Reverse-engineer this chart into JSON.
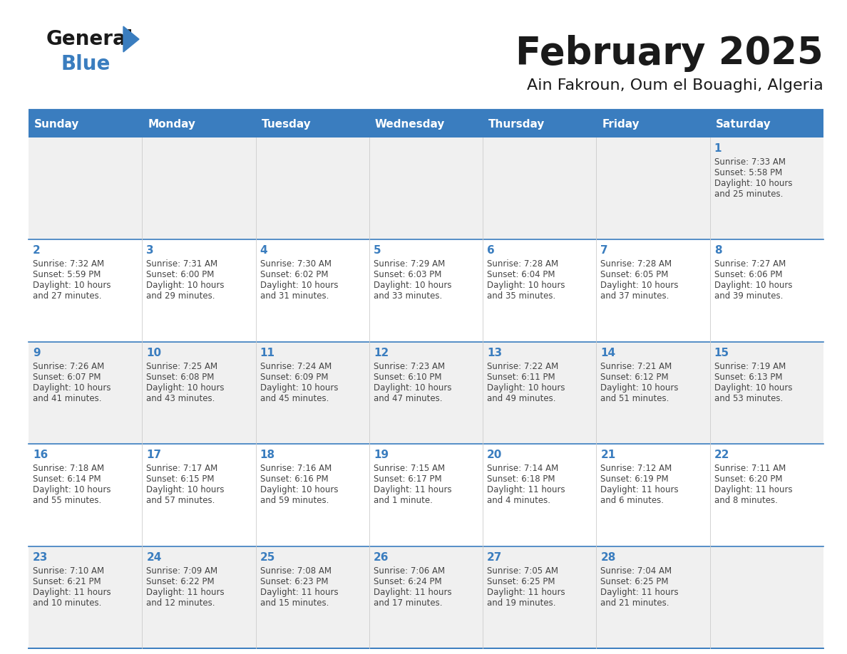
{
  "title": "February 2025",
  "subtitle": "Ain Fakroun, Oum el Bouaghi, Algeria",
  "days_of_week": [
    "Sunday",
    "Monday",
    "Tuesday",
    "Wednesday",
    "Thursday",
    "Friday",
    "Saturday"
  ],
  "header_bg": "#3a7dbf",
  "header_text": "#ffffff",
  "row_bg_odd": "#f0f0f0",
  "row_bg_even": "#ffffff",
  "border_color": "#3a7dbf",
  "day_number_color": "#3a7dbf",
  "text_color": "#444444",
  "title_color": "#1a1a1a",
  "logo_general_color": "#1a1a1a",
  "logo_blue_color": "#3a7dbf",
  "calendar_data": [
    [
      null,
      null,
      null,
      null,
      null,
      null,
      {
        "day": 1,
        "sunrise": "7:33 AM",
        "sunset": "5:58 PM",
        "daylight": "10 hours",
        "daylight2": "and 25 minutes."
      }
    ],
    [
      {
        "day": 2,
        "sunrise": "7:32 AM",
        "sunset": "5:59 PM",
        "daylight": "10 hours",
        "daylight2": "and 27 minutes."
      },
      {
        "day": 3,
        "sunrise": "7:31 AM",
        "sunset": "6:00 PM",
        "daylight": "10 hours",
        "daylight2": "and 29 minutes."
      },
      {
        "day": 4,
        "sunrise": "7:30 AM",
        "sunset": "6:02 PM",
        "daylight": "10 hours",
        "daylight2": "and 31 minutes."
      },
      {
        "day": 5,
        "sunrise": "7:29 AM",
        "sunset": "6:03 PM",
        "daylight": "10 hours",
        "daylight2": "and 33 minutes."
      },
      {
        "day": 6,
        "sunrise": "7:28 AM",
        "sunset": "6:04 PM",
        "daylight": "10 hours",
        "daylight2": "and 35 minutes."
      },
      {
        "day": 7,
        "sunrise": "7:28 AM",
        "sunset": "6:05 PM",
        "daylight": "10 hours",
        "daylight2": "and 37 minutes."
      },
      {
        "day": 8,
        "sunrise": "7:27 AM",
        "sunset": "6:06 PM",
        "daylight": "10 hours",
        "daylight2": "and 39 minutes."
      }
    ],
    [
      {
        "day": 9,
        "sunrise": "7:26 AM",
        "sunset": "6:07 PM",
        "daylight": "10 hours",
        "daylight2": "and 41 minutes."
      },
      {
        "day": 10,
        "sunrise": "7:25 AM",
        "sunset": "6:08 PM",
        "daylight": "10 hours",
        "daylight2": "and 43 minutes."
      },
      {
        "day": 11,
        "sunrise": "7:24 AM",
        "sunset": "6:09 PM",
        "daylight": "10 hours",
        "daylight2": "and 45 minutes."
      },
      {
        "day": 12,
        "sunrise": "7:23 AM",
        "sunset": "6:10 PM",
        "daylight": "10 hours",
        "daylight2": "and 47 minutes."
      },
      {
        "day": 13,
        "sunrise": "7:22 AM",
        "sunset": "6:11 PM",
        "daylight": "10 hours",
        "daylight2": "and 49 minutes."
      },
      {
        "day": 14,
        "sunrise": "7:21 AM",
        "sunset": "6:12 PM",
        "daylight": "10 hours",
        "daylight2": "and 51 minutes."
      },
      {
        "day": 15,
        "sunrise": "7:19 AM",
        "sunset": "6:13 PM",
        "daylight": "10 hours",
        "daylight2": "and 53 minutes."
      }
    ],
    [
      {
        "day": 16,
        "sunrise": "7:18 AM",
        "sunset": "6:14 PM",
        "daylight": "10 hours",
        "daylight2": "and 55 minutes."
      },
      {
        "day": 17,
        "sunrise": "7:17 AM",
        "sunset": "6:15 PM",
        "daylight": "10 hours",
        "daylight2": "and 57 minutes."
      },
      {
        "day": 18,
        "sunrise": "7:16 AM",
        "sunset": "6:16 PM",
        "daylight": "10 hours",
        "daylight2": "and 59 minutes."
      },
      {
        "day": 19,
        "sunrise": "7:15 AM",
        "sunset": "6:17 PM",
        "daylight": "11 hours",
        "daylight2": "and 1 minute."
      },
      {
        "day": 20,
        "sunrise": "7:14 AM",
        "sunset": "6:18 PM",
        "daylight": "11 hours",
        "daylight2": "and 4 minutes."
      },
      {
        "day": 21,
        "sunrise": "7:12 AM",
        "sunset": "6:19 PM",
        "daylight": "11 hours",
        "daylight2": "and 6 minutes."
      },
      {
        "day": 22,
        "sunrise": "7:11 AM",
        "sunset": "6:20 PM",
        "daylight": "11 hours",
        "daylight2": "and 8 minutes."
      }
    ],
    [
      {
        "day": 23,
        "sunrise": "7:10 AM",
        "sunset": "6:21 PM",
        "daylight": "11 hours",
        "daylight2": "and 10 minutes."
      },
      {
        "day": 24,
        "sunrise": "7:09 AM",
        "sunset": "6:22 PM",
        "daylight": "11 hours",
        "daylight2": "and 12 minutes."
      },
      {
        "day": 25,
        "sunrise": "7:08 AM",
        "sunset": "6:23 PM",
        "daylight": "11 hours",
        "daylight2": "and 15 minutes."
      },
      {
        "day": 26,
        "sunrise": "7:06 AM",
        "sunset": "6:24 PM",
        "daylight": "11 hours",
        "daylight2": "and 17 minutes."
      },
      {
        "day": 27,
        "sunrise": "7:05 AM",
        "sunset": "6:25 PM",
        "daylight": "11 hours",
        "daylight2": "and 19 minutes."
      },
      {
        "day": 28,
        "sunrise": "7:04 AM",
        "sunset": "6:25 PM",
        "daylight": "11 hours",
        "daylight2": "and 21 minutes."
      },
      null
    ]
  ]
}
